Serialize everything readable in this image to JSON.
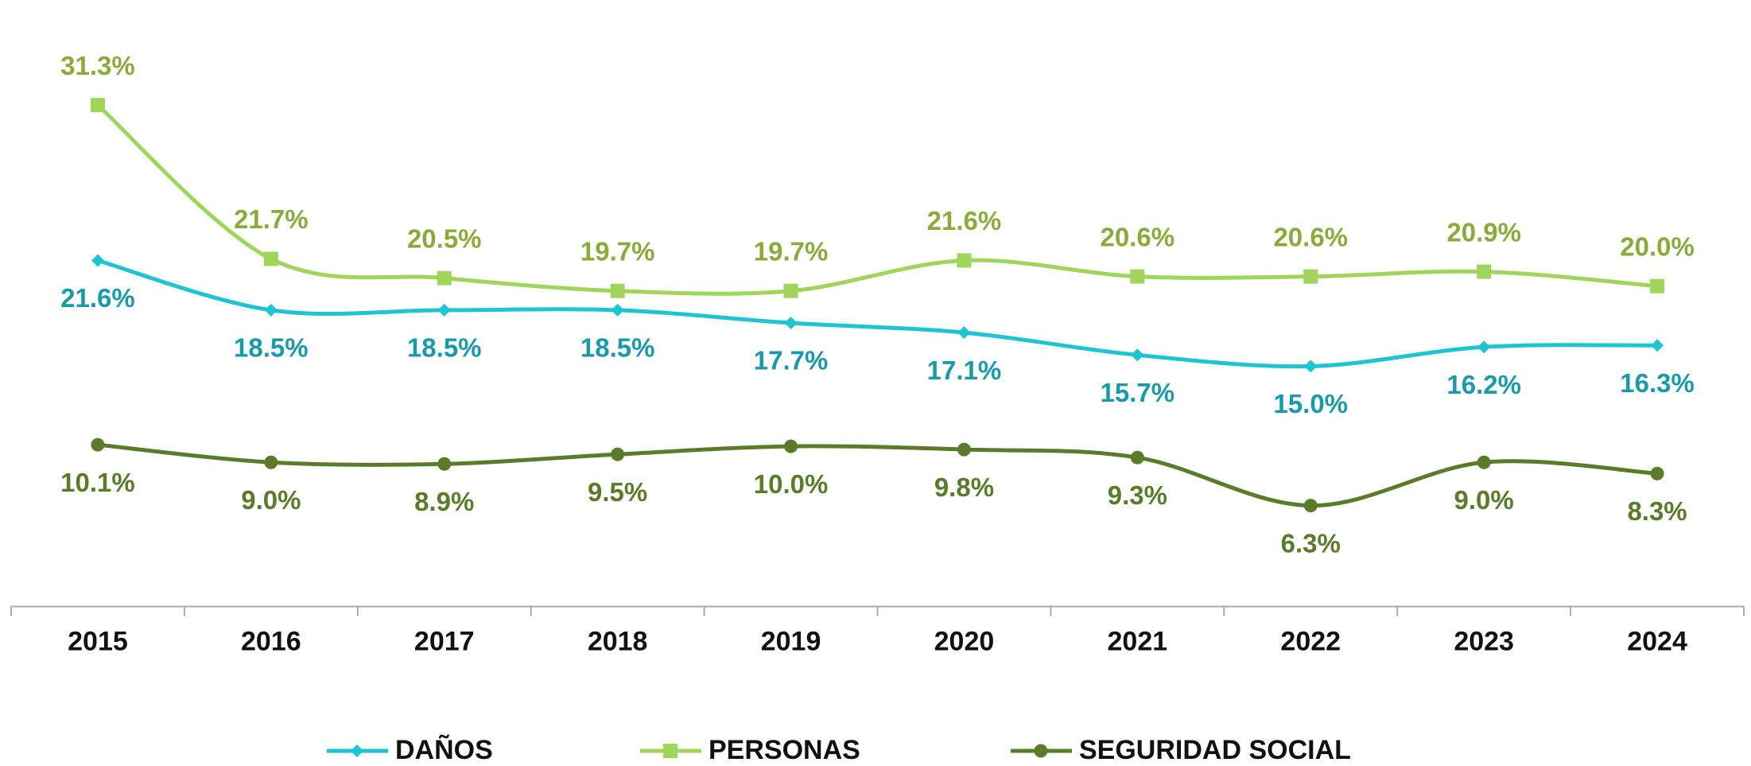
{
  "chart_data": {
    "type": "line",
    "categories": [
      "2015",
      "2016",
      "2017",
      "2018",
      "2019",
      "2020",
      "2021",
      "2022",
      "2023",
      "2024"
    ],
    "ylim": [
      0,
      35
    ],
    "smooth": true,
    "legend": "bottom",
    "series": [
      {
        "name": "DAÑOS",
        "color": "#1fc4d2",
        "label_color": "#1a9aa8",
        "marker": "diamond",
        "label_position": "below",
        "values": [
          21.6,
          18.5,
          18.5,
          18.5,
          17.7,
          17.1,
          15.7,
          15.0,
          16.2,
          16.3
        ],
        "value_labels": [
          "21.6%",
          "18.5%",
          "18.5%",
          "18.5%",
          "17.7%",
          "17.1%",
          "15.7%",
          "15.0%",
          "16.2%",
          "16.3%"
        ]
      },
      {
        "name": "PERSONAS",
        "color": "#9fd55b",
        "label_color": "#8aab3c",
        "marker": "square",
        "label_position": "above",
        "values": [
          31.3,
          21.7,
          20.5,
          19.7,
          19.7,
          21.6,
          20.6,
          20.6,
          20.9,
          20.0
        ],
        "value_labels": [
          "31.3%",
          "21.7%",
          "20.5%",
          "19.7%",
          "19.7%",
          "21.6%",
          "20.6%",
          "20.6%",
          "20.9%",
          "20.0%"
        ]
      },
      {
        "name": "SEGURIDAD SOCIAL",
        "color": "#5a7b2a",
        "label_color": "#5a7b2a",
        "marker": "circle",
        "label_position": "below",
        "values": [
          10.1,
          9.0,
          8.9,
          9.5,
          10.0,
          9.8,
          9.3,
          6.3,
          9.0,
          8.3
        ],
        "value_labels": [
          "10.1%",
          "9.0%",
          "8.9%",
          "9.5%",
          "10.0%",
          "9.8%",
          "9.3%",
          "6.3%",
          "9.0%",
          "8.3%"
        ]
      }
    ]
  }
}
